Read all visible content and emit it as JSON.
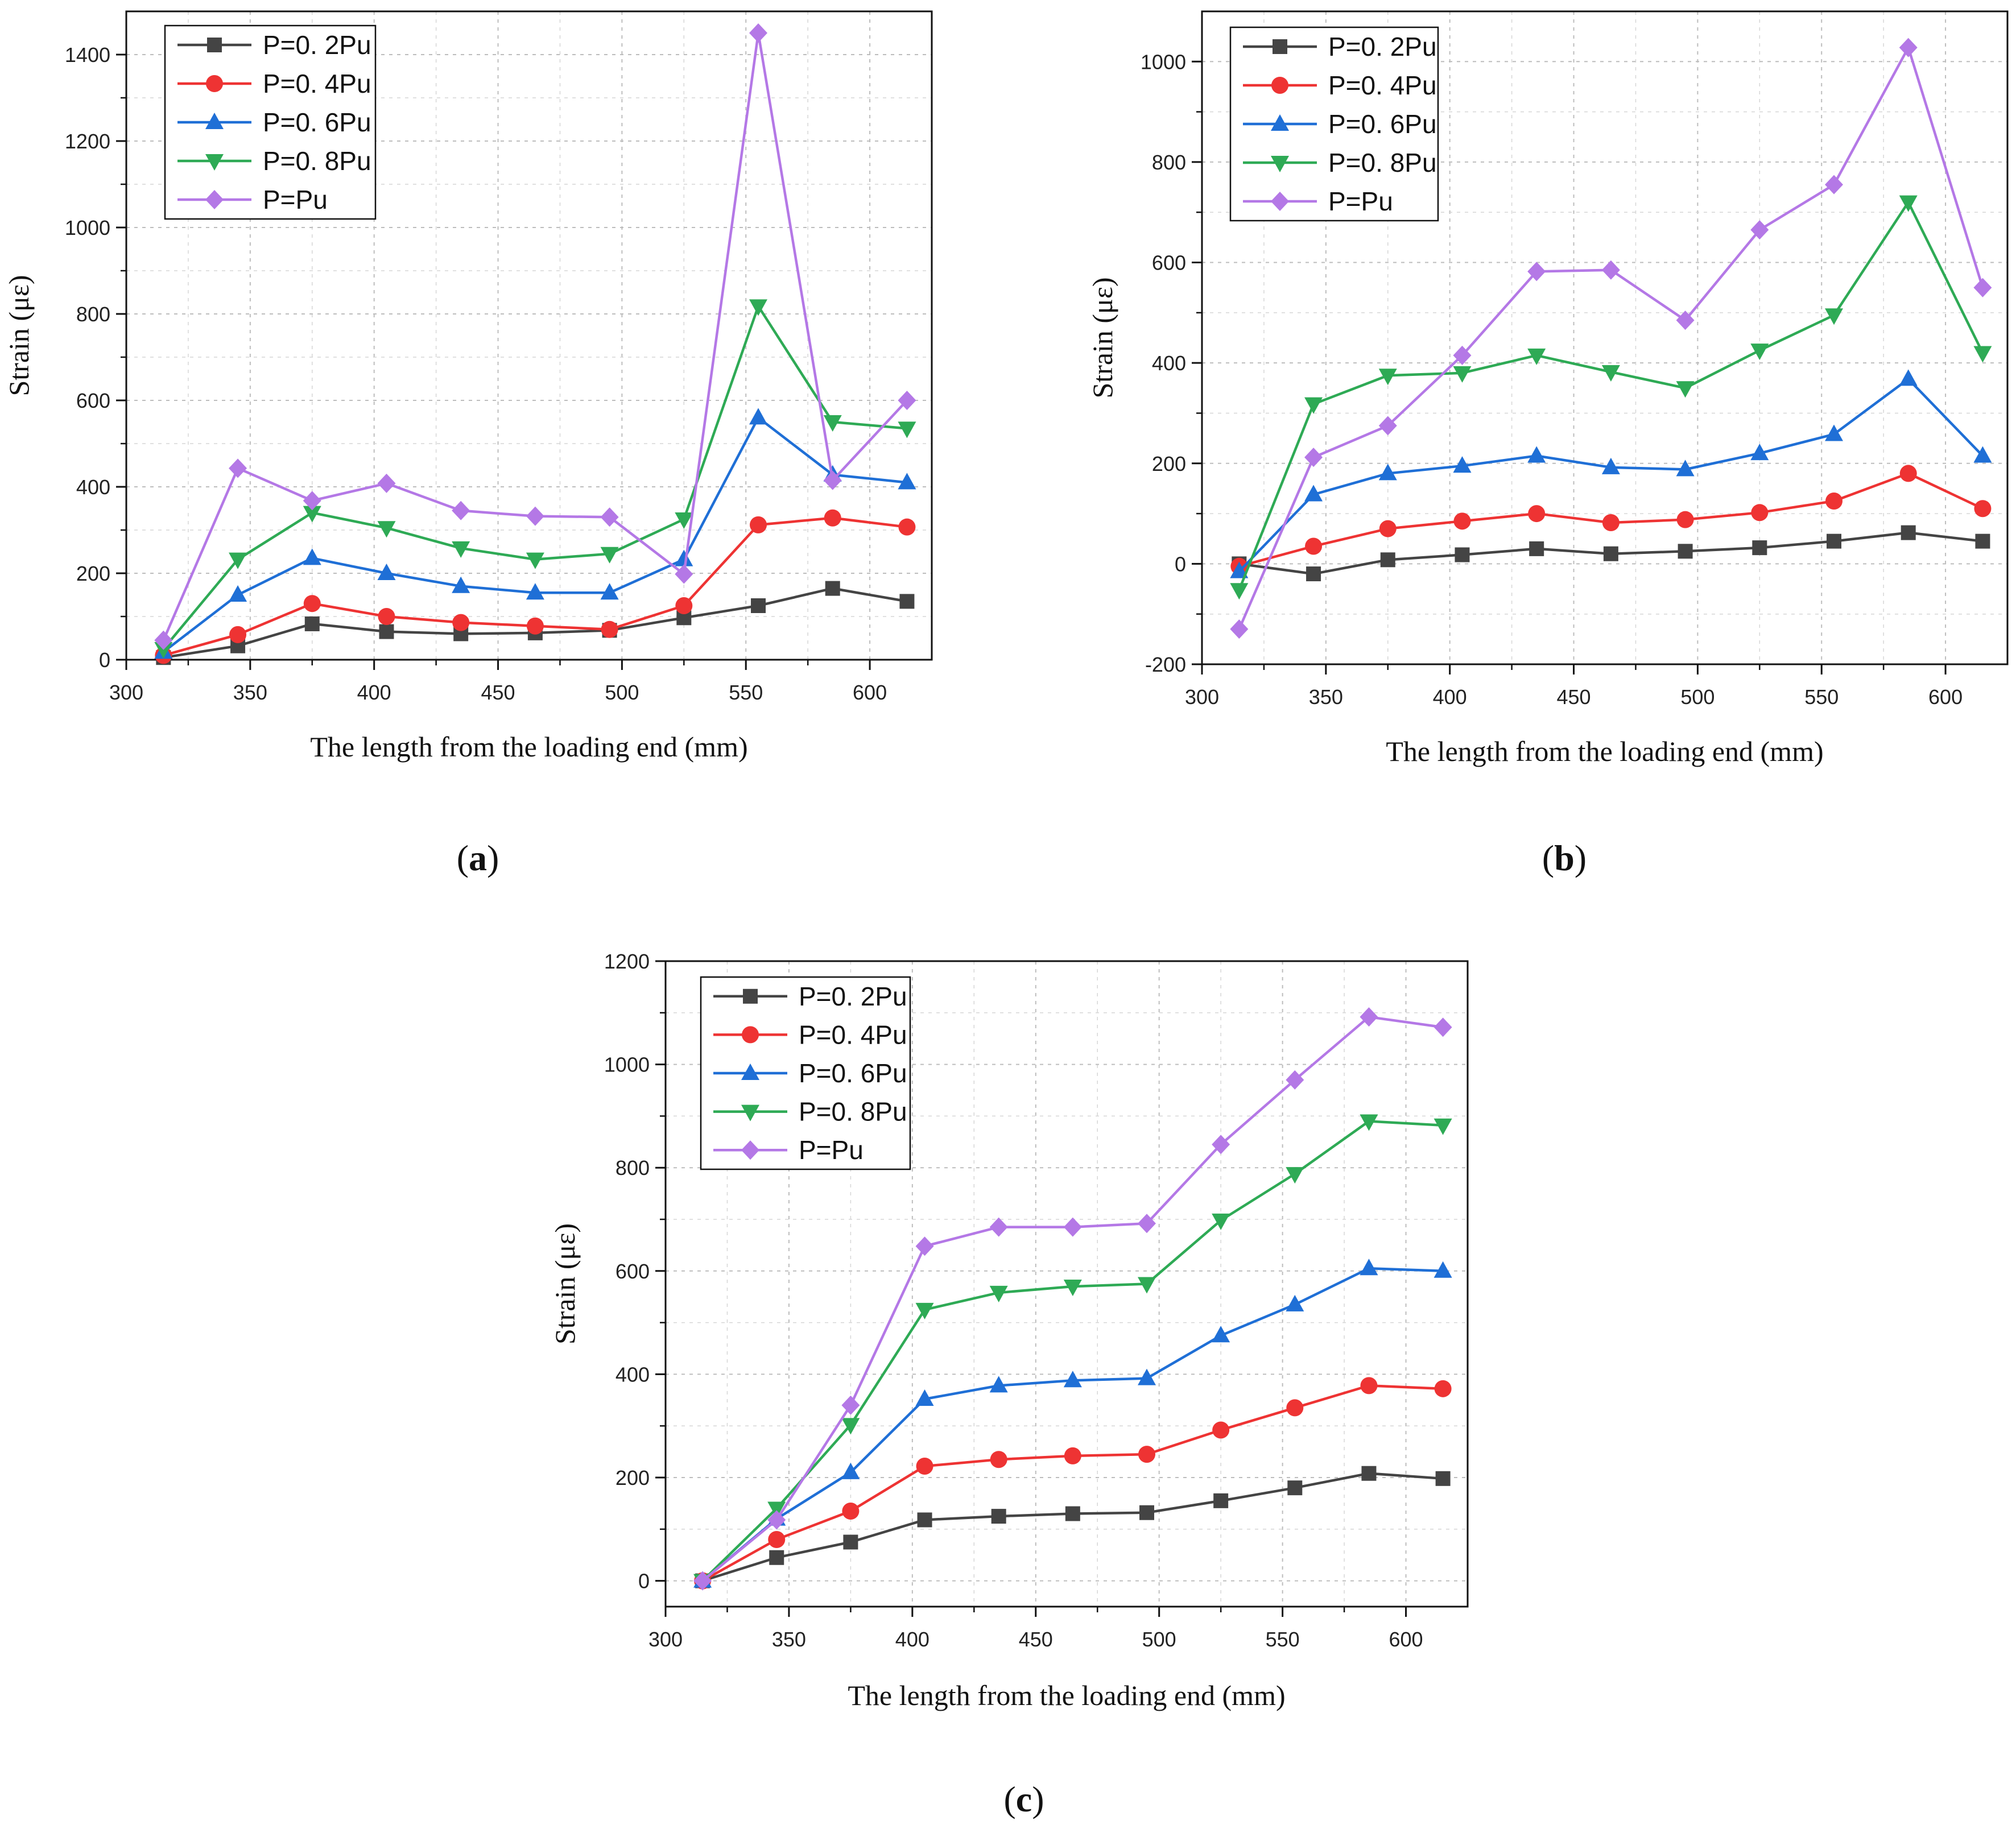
{
  "chart_data": [
    {
      "type": "line",
      "panel_label": "a",
      "xlabel": "The length from the loading end (mm)",
      "ylabel": "Strain (με)",
      "xlim": [
        300,
        625
      ],
      "ylim": [
        0,
        1500
      ],
      "xticks": [
        300,
        350,
        400,
        450,
        500,
        550,
        600
      ],
      "yticks": [
        0,
        200,
        400,
        600,
        800,
        1000,
        1200,
        1400
      ],
      "grid": true,
      "legend_position": "top-left",
      "x": [
        315,
        345,
        375,
        405,
        435,
        465,
        495,
        525,
        555,
        585,
        615
      ],
      "series": [
        {
          "name": "P=0. 2Pu",
          "color": "#444444",
          "marker": "square",
          "values": [
            5,
            32,
            83,
            65,
            60,
            62,
            68,
            97,
            125,
            165,
            135
          ]
        },
        {
          "name": "P=0. 4Pu",
          "color": "#ee3333",
          "marker": "circle",
          "values": [
            10,
            58,
            130,
            100,
            86,
            78,
            70,
            125,
            312,
            328,
            307
          ]
        },
        {
          "name": "P=0. 6Pu",
          "color": "#1f6fd6",
          "marker": "triangle-up",
          "values": [
            18,
            150,
            235,
            200,
            170,
            155,
            155,
            232,
            560,
            428,
            410
          ]
        },
        {
          "name": "P=0. 8Pu",
          "color": "#2eaa55",
          "marker": "triangle-down",
          "values": [
            25,
            232,
            340,
            305,
            258,
            232,
            245,
            325,
            818,
            550,
            535
          ]
        },
        {
          "name": "P=Pu",
          "color": "#b478e6",
          "marker": "diamond",
          "values": [
            45,
            443,
            368,
            408,
            345,
            332,
            330,
            198,
            1450,
            415,
            600
          ]
        }
      ]
    },
    {
      "type": "line",
      "panel_label": "b",
      "xlabel": "The length from the loading end (mm)",
      "ylabel": "Strain (με)",
      "xlim": [
        300,
        625
      ],
      "ylim": [
        -200,
        1100
      ],
      "xticks": [
        300,
        350,
        400,
        450,
        500,
        550,
        600
      ],
      "yticks": [
        -200,
        0,
        200,
        400,
        600,
        800,
        1000
      ],
      "grid": true,
      "legend_position": "top-left",
      "x": [
        315,
        345,
        375,
        405,
        435,
        465,
        495,
        525,
        555,
        585,
        615
      ],
      "series": [
        {
          "name": "P=0. 2Pu",
          "color": "#444444",
          "marker": "square",
          "values": [
            0,
            -20,
            8,
            18,
            30,
            20,
            25,
            32,
            45,
            62,
            45
          ]
        },
        {
          "name": "P=0. 4Pu",
          "color": "#ee3333",
          "marker": "circle",
          "values": [
            -5,
            35,
            70,
            85,
            100,
            82,
            88,
            102,
            125,
            180,
            110
          ]
        },
        {
          "name": "P=0. 6Pu",
          "color": "#1f6fd6",
          "marker": "triangle-up",
          "values": [
            -15,
            138,
            180,
            195,
            215,
            192,
            188,
            220,
            258,
            368,
            215
          ]
        },
        {
          "name": "P=0. 8Pu",
          "color": "#2eaa55",
          "marker": "triangle-down",
          "values": [
            -52,
            318,
            375,
            380,
            415,
            382,
            350,
            425,
            495,
            720,
            420
          ]
        },
        {
          "name": "P=Pu",
          "color": "#b478e6",
          "marker": "diamond",
          "values": [
            -130,
            212,
            275,
            415,
            582,
            585,
            485,
            665,
            755,
            1028,
            550
          ]
        }
      ]
    },
    {
      "type": "line",
      "panel_label": "c",
      "xlabel": "The length from the loading end (mm)",
      "ylabel": "Strain (με)",
      "xlim": [
        300,
        625
      ],
      "ylim": [
        -50,
        1200
      ],
      "xticks": [
        300,
        350,
        400,
        450,
        500,
        550,
        600
      ],
      "yticks": [
        0,
        200,
        400,
        600,
        800,
        1000,
        1200
      ],
      "grid": true,
      "legend_position": "top-left",
      "x": [
        315,
        345,
        375,
        405,
        435,
        465,
        495,
        525,
        555,
        585,
        615
      ],
      "series": [
        {
          "name": "P=0. 2Pu",
          "color": "#444444",
          "marker": "square",
          "values": [
            0,
            45,
            75,
            118,
            125,
            130,
            132,
            155,
            180,
            208,
            198
          ]
        },
        {
          "name": "P=0. 4Pu",
          "color": "#ee3333",
          "marker": "circle",
          "values": [
            0,
            80,
            135,
            222,
            235,
            242,
            245,
            292,
            335,
            378,
            372
          ]
        },
        {
          "name": "P=0. 6Pu",
          "color": "#1f6fd6",
          "marker": "triangle-up",
          "values": [
            0,
            120,
            210,
            352,
            378,
            388,
            392,
            475,
            535,
            605,
            600
          ]
        },
        {
          "name": "P=0. 8Pu",
          "color": "#2eaa55",
          "marker": "triangle-down",
          "values": [
            0,
            140,
            302,
            525,
            558,
            570,
            575,
            698,
            788,
            890,
            882
          ]
        },
        {
          "name": "P=Pu",
          "color": "#b478e6",
          "marker": "diamond",
          "values": [
            0,
            118,
            340,
            648,
            685,
            685,
            692,
            845,
            970,
            1092,
            1072
          ]
        }
      ]
    }
  ]
}
